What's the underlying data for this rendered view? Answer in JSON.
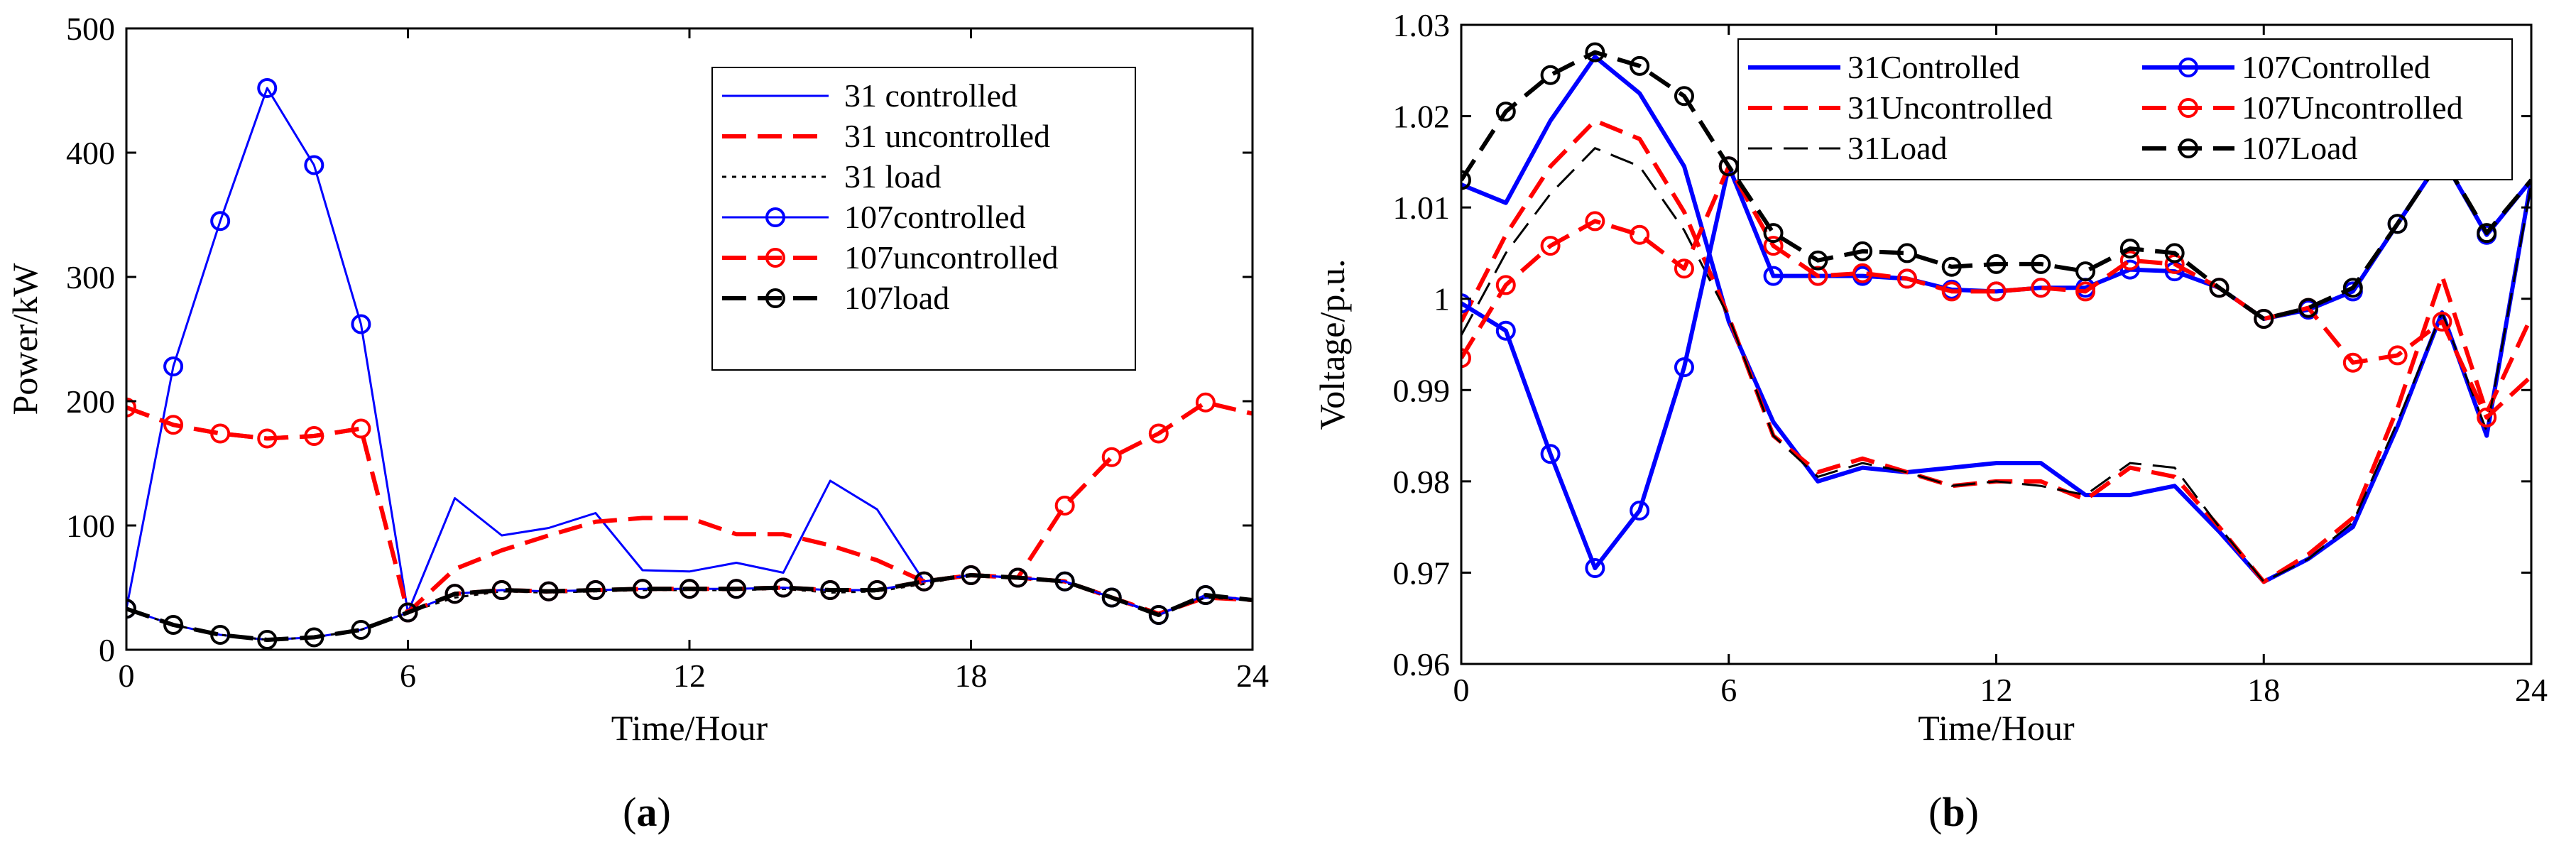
{
  "chart_data": [
    {
      "type": "line",
      "caption": "(a)",
      "caption_letter": "a",
      "xlabel": "Time/Hour",
      "ylabel": "Power/kW",
      "xlim": [
        0,
        24
      ],
      "ylim": [
        0,
        500
      ],
      "xticks": [
        0,
        6,
        12,
        18,
        24
      ],
      "yticks": [
        0,
        100,
        200,
        300,
        400,
        500
      ],
      "grid": false,
      "legend_placement": "top-right",
      "series": [
        {
          "name": "31 controlled",
          "color": "#0000ff",
          "dash": "solid",
          "marker": "none",
          "width": "thin",
          "x": [
            0,
            1,
            2,
            3,
            4,
            5,
            6,
            7,
            8,
            9,
            10,
            11,
            12,
            13,
            14,
            15,
            16,
            17,
            18,
            19,
            20,
            21,
            22,
            23,
            24
          ],
          "y": [
            33,
            20,
            12,
            8,
            10,
            16,
            30,
            122,
            92,
            98,
            110,
            64,
            63,
            70,
            62,
            136,
            113,
            55,
            60,
            58,
            55,
            42,
            29,
            42,
            40
          ]
        },
        {
          "name": "31 uncontrolled",
          "color": "#ff0000",
          "dash": "dashed",
          "marker": "none",
          "width": "thick",
          "x": [
            0,
            1,
            2,
            3,
            4,
            5,
            6,
            7,
            8,
            9,
            10,
            11,
            12,
            13,
            14,
            15,
            16,
            17,
            18,
            19,
            20,
            21,
            22,
            23,
            24
          ],
          "y": [
            195,
            181,
            174,
            170,
            172,
            178,
            30,
            65,
            80,
            92,
            103,
            106,
            106,
            93,
            93,
            84,
            72,
            55,
            60,
            58,
            55,
            42,
            29,
            42,
            40
          ]
        },
        {
          "name": "31 load",
          "color": "#000000",
          "dash": "dotted",
          "marker": "none",
          "width": "thin",
          "x": [
            0,
            1,
            2,
            3,
            4,
            5,
            6,
            7,
            8,
            9,
            10,
            11,
            12,
            13,
            14,
            15,
            16,
            17,
            18,
            19,
            20,
            21,
            22,
            23,
            24
          ],
          "y": [
            33,
            20,
            12,
            8,
            10,
            16,
            30,
            42,
            47,
            46,
            47,
            48,
            48,
            48,
            49,
            46,
            47,
            53,
            60,
            58,
            54,
            42,
            28,
            42,
            40
          ]
        },
        {
          "name": "107controlled",
          "color": "#0000ff",
          "dash": "solid",
          "marker": "circle",
          "width": "thin",
          "x": [
            0,
            1,
            2,
            3,
            4,
            5,
            6,
            7,
            8,
            9,
            10,
            11,
            12,
            13,
            14,
            15,
            16,
            17,
            18,
            19,
            20,
            21,
            22,
            23,
            24
          ],
          "y": [
            33,
            228,
            345,
            452,
            390,
            262,
            30,
            45,
            48,
            47,
            48,
            49,
            49,
            49,
            50,
            48,
            48,
            55,
            60,
            58,
            55,
            42,
            28,
            44,
            40
          ]
        },
        {
          "name": "107uncontrolled",
          "color": "#ff0000",
          "dash": "dashed",
          "marker": "circle",
          "width": "thick",
          "x": [
            0,
            1,
            2,
            3,
            4,
            5,
            6,
            7,
            8,
            9,
            10,
            11,
            12,
            13,
            14,
            15,
            16,
            17,
            18,
            19,
            20,
            21,
            22,
            23,
            24
          ],
          "y": [
            195,
            181,
            174,
            170,
            172,
            178,
            30,
            45,
            48,
            47,
            48,
            49,
            49,
            49,
            50,
            48,
            48,
            55,
            60,
            58,
            116,
            155,
            174,
            199,
            190
          ]
        },
        {
          "name": "107load",
          "color": "#000000",
          "dash": "dashed",
          "marker": "circle",
          "width": "thick",
          "x": [
            0,
            1,
            2,
            3,
            4,
            5,
            6,
            7,
            8,
            9,
            10,
            11,
            12,
            13,
            14,
            15,
            16,
            17,
            18,
            19,
            20,
            21,
            22,
            23,
            24
          ],
          "y": [
            33,
            20,
            12,
            8,
            10,
            16,
            30,
            45,
            48,
            47,
            48,
            49,
            49,
            49,
            50,
            48,
            48,
            55,
            60,
            58,
            55,
            42,
            28,
            44,
            40
          ]
        }
      ]
    },
    {
      "type": "line",
      "caption": "(b)",
      "caption_letter": "b",
      "xlabel": "Time/Hour",
      "ylabel": "Voltage/p.u.",
      "xlim": [
        0,
        24
      ],
      "ylim": [
        0.96,
        1.03
      ],
      "xticks": [
        0,
        6,
        12,
        18,
        24
      ],
      "yticks": [
        0.96,
        0.97,
        0.98,
        0.99,
        1,
        1.01,
        1.02,
        1.03
      ],
      "ytick_labels": [
        "0.96",
        "0.97",
        "0.98",
        "0.99",
        "1",
        "1.01",
        "1.02",
        "1.03"
      ],
      "grid": false,
      "legend_placement": "top",
      "series": [
        {
          "name": "31Controlled",
          "color": "#0000ff",
          "dash": "solid",
          "marker": "none",
          "width": "thick",
          "x": [
            0,
            1,
            2,
            3,
            4,
            5,
            6,
            7,
            8,
            9,
            10,
            11,
            12,
            13,
            14,
            15,
            16,
            17,
            18,
            19,
            20,
            21,
            22,
            23,
            24
          ],
          "y": [
            1.0125,
            1.0105,
            1.0195,
            1.0265,
            1.0225,
            1.0145,
            0.9975,
            0.9865,
            0.98,
            0.9815,
            0.981,
            0.9815,
            0.982,
            0.982,
            0.9785,
            0.9785,
            0.9795,
            0.9745,
            0.969,
            0.9715,
            0.975,
            0.986,
            0.9985,
            0.985,
            1.013
          ]
        },
        {
          "name": "31Uncontrolled",
          "color": "#ff0000",
          "dash": "dashed",
          "marker": "none",
          "width": "thick",
          "x": [
            0,
            1,
            2,
            3,
            4,
            5,
            6,
            7,
            8,
            9,
            10,
            11,
            12,
            13,
            14,
            15,
            16,
            17,
            18,
            19,
            20,
            21,
            22,
            23,
            24
          ],
          "y": [
            0.9975,
            1.007,
            1.0145,
            1.0195,
            1.0175,
            1.0095,
            0.998,
            0.985,
            0.981,
            0.9825,
            0.981,
            0.9795,
            0.98,
            0.98,
            0.978,
            0.9815,
            0.9805,
            0.975,
            0.969,
            0.972,
            0.976,
            0.988,
            1.0025,
            0.9875,
            0.998
          ]
        },
        {
          "name": "31Load",
          "color": "#000000",
          "dash": "dashed",
          "marker": "none",
          "width": "thin",
          "x": [
            0,
            1,
            2,
            3,
            4,
            5,
            6,
            7,
            8,
            9,
            10,
            11,
            12,
            13,
            14,
            15,
            16,
            17,
            18,
            19,
            20,
            21,
            22,
            23,
            24
          ],
          "y": [
            0.996,
            1.005,
            1.0115,
            1.0165,
            1.0145,
            1.0075,
            0.998,
            0.985,
            0.9805,
            0.982,
            0.981,
            0.9795,
            0.98,
            0.9795,
            0.9785,
            0.982,
            0.9815,
            0.975,
            0.969,
            0.9715,
            0.9755,
            0.9865,
            0.9985,
            0.9855,
            1.0125
          ]
        },
        {
          "name": "107Controlled",
          "color": "#0000ff",
          "dash": "solid",
          "marker": "circle",
          "width": "thick",
          "x": [
            0,
            1,
            2,
            3,
            4,
            5,
            6,
            7,
            8,
            9,
            10,
            11,
            12,
            13,
            14,
            15,
            16,
            17,
            18,
            19,
            20,
            21,
            22,
            23,
            24
          ],
          "y": [
            0.9995,
            0.9965,
            0.983,
            0.9705,
            0.9768,
            0.9925,
            1.0145,
            1.0025,
            1.0025,
            1.0025,
            1.0022,
            1.001,
            1.0008,
            1.0012,
            1.0012,
            1.0032,
            1.003,
            1.0012,
            0.9978,
            0.9988,
            1.0008,
            1.0082,
            1.0155,
            1.007,
            1.013
          ]
        },
        {
          "name": "107Uncontrolled",
          "color": "#ff0000",
          "dash": "dashed",
          "marker": "circle",
          "width": "thick",
          "x": [
            0,
            1,
            2,
            3,
            4,
            5,
            6,
            7,
            8,
            9,
            10,
            11,
            12,
            13,
            14,
            15,
            16,
            17,
            18,
            19,
            20,
            21,
            22,
            23,
            24
          ],
          "y": [
            0.9935,
            1.0015,
            1.0058,
            1.0085,
            1.007,
            1.0033,
            1.0145,
            1.0058,
            1.0025,
            1.0028,
            1.0022,
            1.0008,
            1.0008,
            1.0012,
            1.0008,
            1.0042,
            1.0038,
            1.0012,
            0.9978,
            0.999,
            0.993,
            0.9938,
            0.9975,
            0.987,
            0.9915
          ]
        },
        {
          "name": "107Load",
          "color": "#000000",
          "dash": "dashed",
          "marker": "circle",
          "width": "thick",
          "x": [
            0,
            1,
            2,
            3,
            4,
            5,
            6,
            7,
            8,
            9,
            10,
            11,
            12,
            13,
            14,
            15,
            16,
            17,
            18,
            19,
            20,
            21,
            22,
            23,
            24
          ],
          "y": [
            1.013,
            1.0205,
            1.0245,
            1.027,
            1.0255,
            1.0222,
            1.0145,
            1.0072,
            1.0042,
            1.0052,
            1.005,
            1.0035,
            1.0038,
            1.0038,
            1.003,
            1.0055,
            1.005,
            1.0012,
            0.9978,
            0.999,
            1.0012,
            1.0082,
            1.0155,
            1.0072,
            1.013
          ]
        }
      ]
    }
  ]
}
